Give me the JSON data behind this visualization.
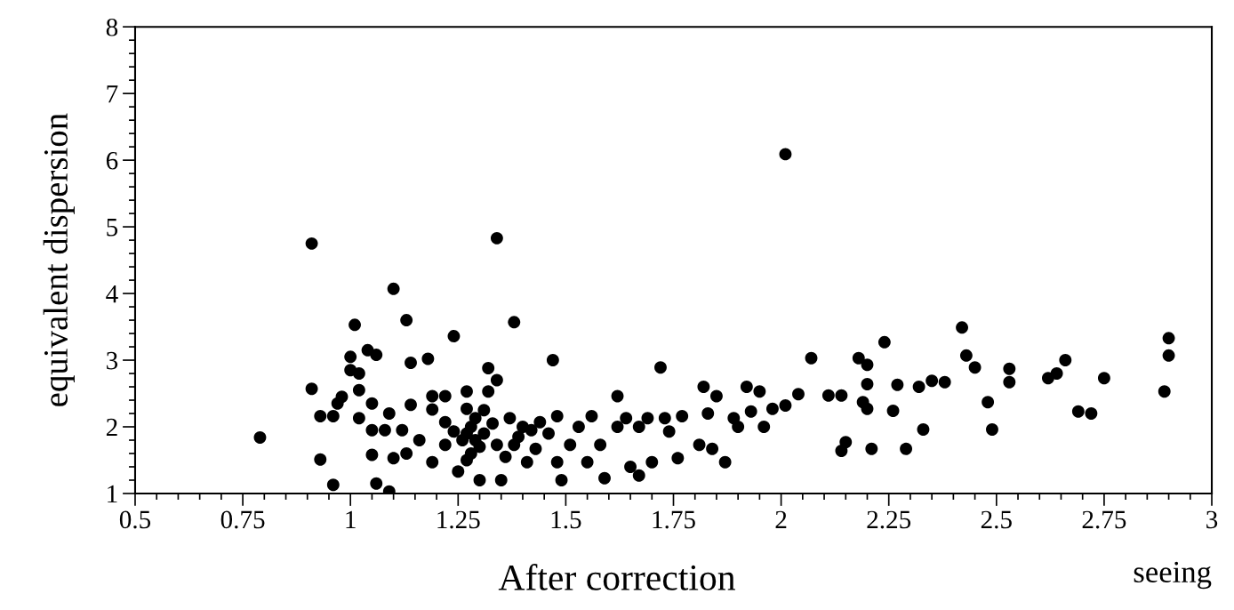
{
  "chart_data": {
    "type": "scatter",
    "title": "After correction",
    "xlabel": "seeing",
    "ylabel": "equivalent dispersion",
    "xlim": [
      0.5,
      3
    ],
    "ylim": [
      1,
      8
    ],
    "xticks": [
      0.5,
      0.75,
      1,
      1.25,
      1.5,
      1.75,
      2,
      2.25,
      2.5,
      2.75,
      3
    ],
    "yticks": [
      1,
      2,
      3,
      4,
      5,
      6,
      7,
      8
    ],
    "grid": false,
    "marker": "circle",
    "series": [
      {
        "color": "#000000",
        "x": [
          0.79,
          0.91,
          0.91,
          0.93,
          0.93,
          0.96,
          0.96,
          0.97,
          0.98,
          1.01,
          1.0,
          1.0,
          1.02,
          1.02,
          1.02,
          1.04,
          1.06,
          1.05,
          1.05,
          1.05,
          1.06,
          1.09,
          1.08,
          1.09,
          1.1,
          1.1,
          1.12,
          1.13,
          1.14,
          1.14,
          1.13,
          1.16,
          1.18,
          1.19,
          1.19,
          1.19,
          1.22,
          1.22,
          1.22,
          1.24,
          1.24,
          1.25,
          1.27,
          1.27,
          1.26,
          1.29,
          1.28,
          1.3,
          1.32,
          1.32,
          1.31,
          1.34,
          1.34,
          1.34,
          1.35,
          1.37,
          1.38,
          1.38,
          1.4,
          1.41,
          1.43,
          1.44,
          1.46,
          1.47,
          1.48,
          1.48,
          1.49,
          1.51,
          1.53,
          1.55,
          1.56,
          1.58,
          1.59,
          1.62,
          1.62,
          1.64,
          1.65,
          1.67,
          1.67,
          1.69,
          1.7,
          1.72,
          1.73,
          1.74,
          1.76,
          1.77,
          1.82,
          1.83,
          1.81,
          1.84,
          1.85,
          1.87,
          1.89,
          1.9,
          1.92,
          1.93,
          1.95,
          1.96,
          1.98,
          2.01,
          2.01,
          2.04,
          2.07,
          2.11,
          2.14,
          2.14,
          2.15,
          2.18,
          2.2,
          2.19,
          2.2,
          2.2,
          2.21,
          2.24,
          2.26,
          2.27,
          2.29,
          2.32,
          2.33,
          2.35,
          2.38,
          2.42,
          2.43,
          2.45,
          2.48,
          2.49,
          2.53,
          2.53,
          2.62,
          2.64,
          2.66,
          2.69,
          2.72,
          2.75,
          2.89,
          2.9,
          2.9,
          1.27,
          1.28,
          1.29,
          1.3,
          1.31,
          1.27,
          1.33,
          1.36,
          1.39,
          1.42
        ],
        "values": [
          1.84,
          4.75,
          2.57,
          1.51,
          2.16,
          1.13,
          2.16,
          2.35,
          2.45,
          3.53,
          3.05,
          2.85,
          2.8,
          2.55,
          2.13,
          3.15,
          3.08,
          2.35,
          1.95,
          1.58,
          1.15,
          1.03,
          1.95,
          2.2,
          4.07,
          1.53,
          1.95,
          3.6,
          2.96,
          2.33,
          1.6,
          1.8,
          3.02,
          2.46,
          2.26,
          1.47,
          2.46,
          2.07,
          1.73,
          3.36,
          1.93,
          1.33,
          2.53,
          2.27,
          1.8,
          2.13,
          1.6,
          1.2,
          2.88,
          2.53,
          1.9,
          4.83,
          2.7,
          1.73,
          1.2,
          2.13,
          3.57,
          1.73,
          2.0,
          1.47,
          1.67,
          2.07,
          1.9,
          3.0,
          2.16,
          1.47,
          1.2,
          1.73,
          2.0,
          1.47,
          2.16,
          1.73,
          1.23,
          2.46,
          2.0,
          2.13,
          1.4,
          1.27,
          2.0,
          2.13,
          1.47,
          2.89,
          2.13,
          1.93,
          1.53,
          2.16,
          2.6,
          2.2,
          1.73,
          1.67,
          2.46,
          1.47,
          2.13,
          2.0,
          2.6,
          2.23,
          2.53,
          2.0,
          2.27,
          2.32,
          6.09,
          2.49,
          3.03,
          2.47,
          2.47,
          1.64,
          1.77,
          3.03,
          2.93,
          2.37,
          2.27,
          2.64,
          1.67,
          3.27,
          2.24,
          2.63,
          1.67,
          2.6,
          1.96,
          2.69,
          2.67,
          3.49,
          3.07,
          2.89,
          2.37,
          1.96,
          2.87,
          2.67,
          2.73,
          2.8,
          3.0,
          2.23,
          2.2,
          2.73,
          2.53,
          3.33,
          3.07,
          1.9,
          2.0,
          1.8,
          1.7,
          2.25,
          1.5,
          2.05,
          1.55,
          1.85,
          1.95
        ]
      }
    ]
  }
}
